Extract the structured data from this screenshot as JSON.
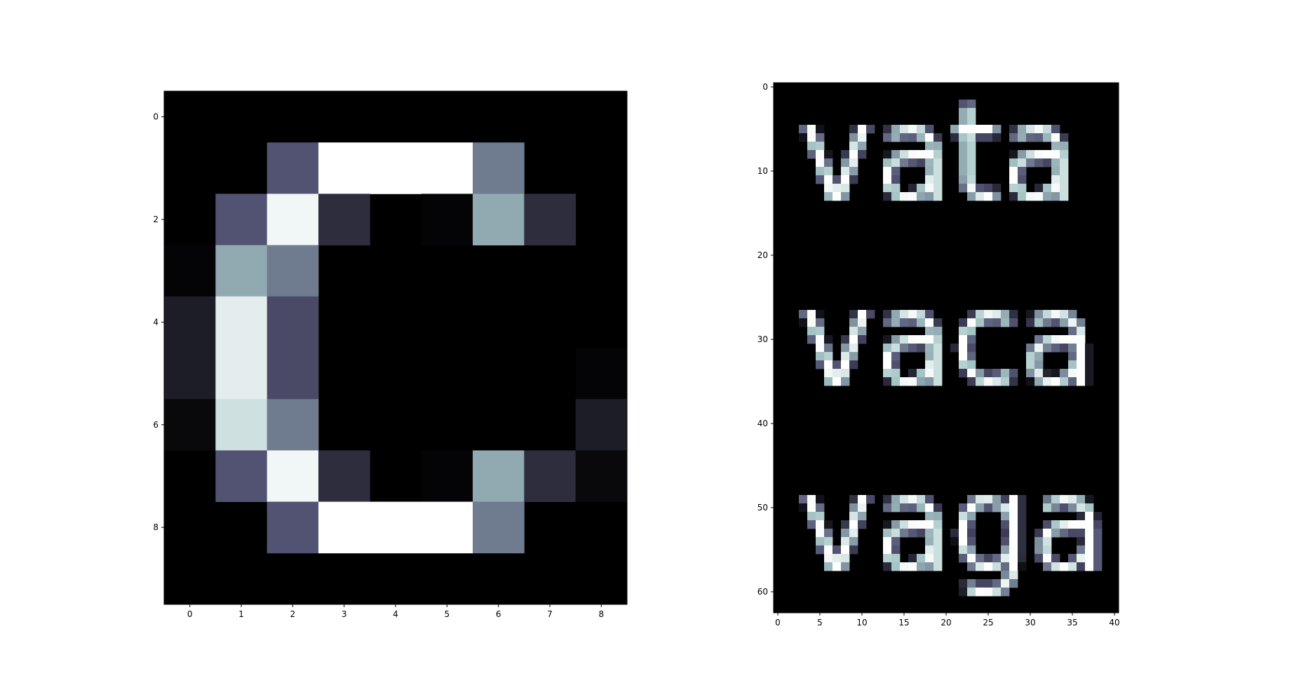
{
  "colormap": "bone",
  "chart_data": [
    {
      "type": "heatmap",
      "title": "",
      "xlabel": "",
      "ylabel": "",
      "xlim": [
        -0.5,
        8.5
      ],
      "ylim": [
        9.5,
        -0.5
      ],
      "xticks": [
        0,
        1,
        2,
        3,
        4,
        5,
        6,
        7,
        8
      ],
      "yticks": [
        0,
        2,
        4,
        6,
        8
      ],
      "value_range": [
        0,
        1
      ],
      "values": [
        [
          0,
          0,
          0,
          0,
          0,
          0,
          0,
          0,
          0
        ],
        [
          0,
          0,
          0.37,
          1,
          1,
          1,
          0.5,
          0,
          0
        ],
        [
          0,
          0.37,
          0.96,
          0.2,
          0,
          0.02,
          0.65,
          0.2,
          0
        ],
        [
          0.02,
          0.65,
          0.5,
          0,
          0,
          0,
          0,
          0,
          0
        ],
        [
          0.13,
          0.92,
          0.33,
          0,
          0,
          0,
          0,
          0,
          0
        ],
        [
          0.13,
          0.92,
          0.33,
          0,
          0,
          0,
          0,
          0,
          0.02
        ],
        [
          0.04,
          0.86,
          0.5,
          0,
          0,
          0,
          0,
          0,
          0.13
        ],
        [
          0,
          0.37,
          0.96,
          0.2,
          0,
          0.02,
          0.65,
          0.2,
          0.04
        ],
        [
          0,
          0,
          0.37,
          1,
          1,
          1,
          0.5,
          0,
          0
        ],
        [
          0,
          0,
          0,
          0,
          0,
          0,
          0,
          0,
          0
        ]
      ]
    },
    {
      "type": "heatmap",
      "title": "",
      "xlabel": "",
      "ylabel": "",
      "xlim": [
        -0.5,
        40.5
      ],
      "ylim": [
        62.5,
        -0.5
      ],
      "xticks": [
        0,
        5,
        10,
        15,
        20,
        25,
        30,
        35,
        40
      ],
      "yticks": [
        0,
        10,
        20,
        30,
        40,
        50,
        60
      ],
      "value_range": [
        0,
        1
      ],
      "rendered_text": [
        "vata",
        "vaca",
        "vaga"
      ],
      "text_rows": [
        {
          "text": "vata",
          "baseline_row": 13
        },
        {
          "text": "vaca",
          "baseline_row": 35
        },
        {
          "text": "vaga",
          "baseline_row": 57
        }
      ]
    }
  ]
}
